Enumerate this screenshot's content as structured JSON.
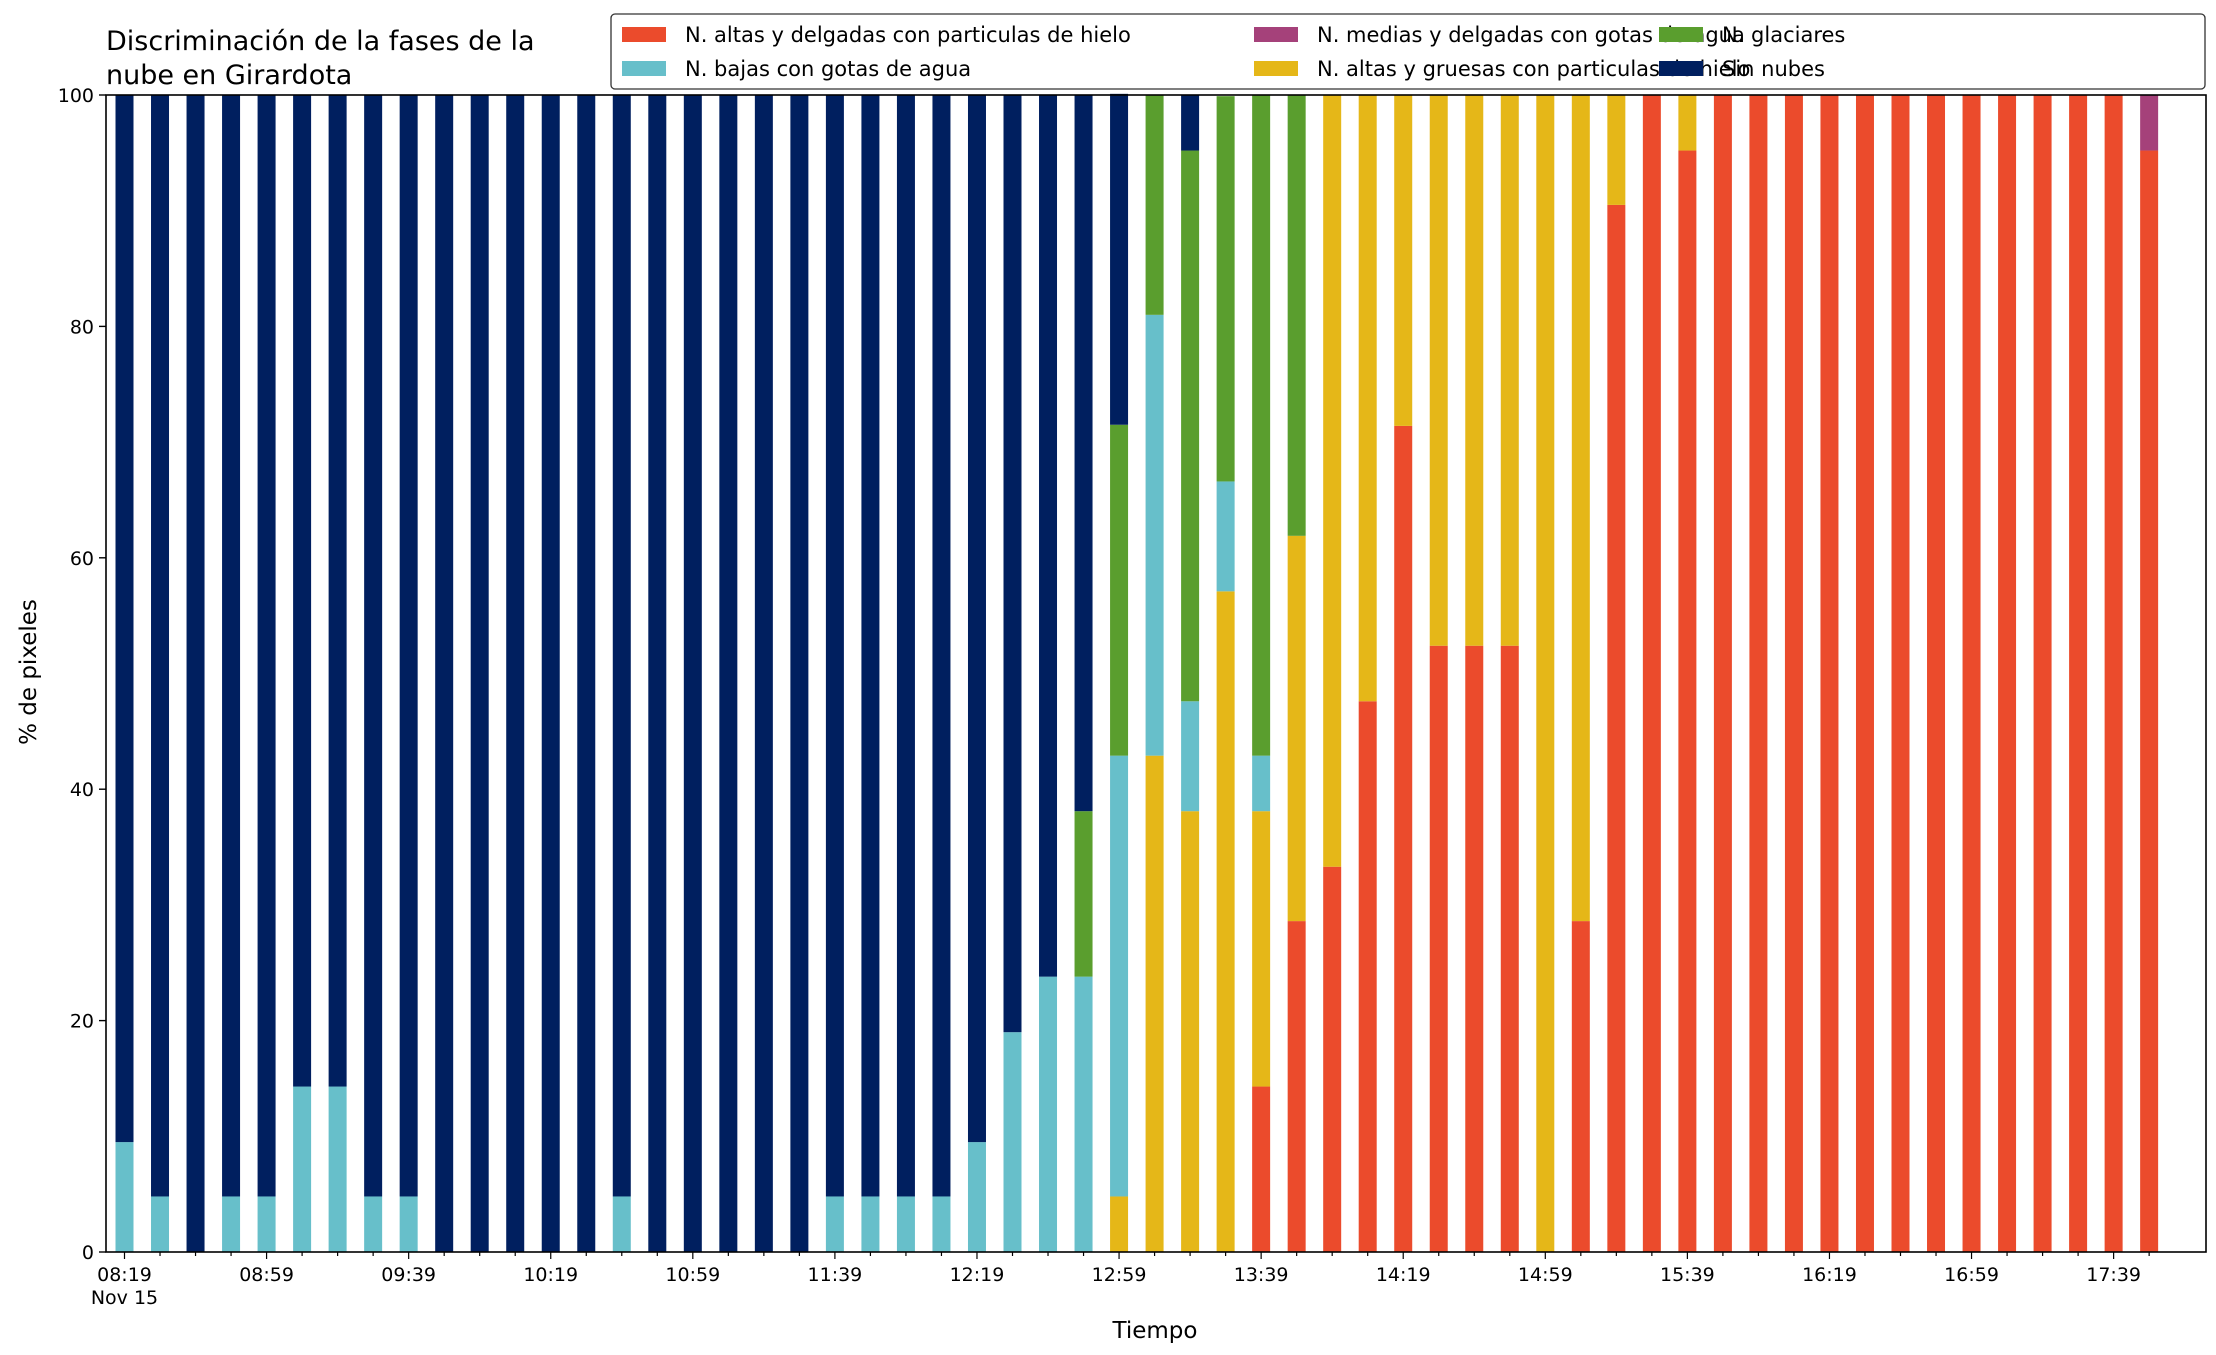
{
  "chart_data": {
    "type": "bar",
    "stacked": true,
    "title": "Discriminación de la fases de la\nnube en Girardota",
    "xlabel": "Tiempo",
    "ylabel": "% de pixeles",
    "ylim": [
      0,
      100
    ],
    "yticks": [
      0,
      20,
      40,
      60,
      80,
      100
    ],
    "grid": false,
    "legend_position": "top-right",
    "xticks": [
      {
        "index": 0,
        "label": "08:19",
        "sublabel": "Nov 15"
      },
      {
        "index": 4,
        "label": "08:59"
      },
      {
        "index": 8,
        "label": "09:39"
      },
      {
        "index": 12,
        "label": "10:19"
      },
      {
        "index": 16,
        "label": "10:59"
      },
      {
        "index": 20,
        "label": "11:39"
      },
      {
        "index": 24,
        "label": "12:19"
      },
      {
        "index": 28,
        "label": "12:59"
      },
      {
        "index": 32,
        "label": "13:39"
      },
      {
        "index": 36,
        "label": "14:19"
      },
      {
        "index": 40,
        "label": "14:59"
      },
      {
        "index": 44,
        "label": "15:39"
      },
      {
        "index": 48,
        "label": "16:19"
      },
      {
        "index": 52,
        "label": "16:59"
      },
      {
        "index": 56,
        "label": "17:39"
      }
    ],
    "categories": [
      "08:19",
      "08:29",
      "08:39",
      "08:49",
      "08:59",
      "09:09",
      "09:19",
      "09:29",
      "09:39",
      "09:49",
      "09:59",
      "10:09",
      "10:19",
      "10:29",
      "10:39",
      "10:49",
      "10:59",
      "11:09",
      "11:19",
      "11:29",
      "11:39",
      "11:49",
      "11:59",
      "12:09",
      "12:19",
      "12:29",
      "12:39",
      "12:49",
      "12:59",
      "13:09",
      "13:19",
      "13:29",
      "13:39",
      "13:49",
      "13:59",
      "14:09",
      "14:19",
      "14:29",
      "14:39",
      "14:49",
      "14:59",
      "15:09",
      "15:19",
      "15:29",
      "15:39",
      "15:49",
      "15:59",
      "16:09",
      "16:19",
      "16:29",
      "16:39",
      "16:49",
      "16:59",
      "17:09",
      "17:19",
      "17:29",
      "17:39",
      "17:49"
    ],
    "series": [
      {
        "name": "N. altas y delgadas con particulas de hielo",
        "color": "#EB4B2C",
        "values": [
          0,
          0,
          0,
          0,
          0,
          0,
          0,
          0,
          0,
          0,
          0,
          0,
          0,
          0,
          0,
          0,
          0,
          0,
          0,
          0,
          0,
          0,
          0,
          0,
          0,
          0,
          0,
          0,
          0,
          0,
          0,
          0,
          14.3,
          28.6,
          33.3,
          47.6,
          71.4,
          52.4,
          52.4,
          52.4,
          0,
          28.6,
          90.5,
          100,
          95.2,
          100,
          100,
          100,
          100,
          100,
          100,
          100,
          100,
          100,
          100,
          100,
          100,
          95.2
        ]
      },
      {
        "name": "N. altas y gruesas con particulas de hielo",
        "color": "#E5B718",
        "values": [
          0,
          0,
          0,
          0,
          0,
          0,
          0,
          0,
          0,
          0,
          0,
          0,
          0,
          0,
          0,
          0,
          0,
          0,
          0,
          0,
          0,
          0,
          0,
          0,
          0,
          0,
          0,
          0,
          4.8,
          42.9,
          38.1,
          57.1,
          23.8,
          33.3,
          66.7,
          52.4,
          28.6,
          47.6,
          47.6,
          47.6,
          100,
          71.4,
          9.5,
          0,
          4.8,
          0,
          0,
          0,
          0,
          0,
          0,
          0,
          0,
          0,
          0,
          0,
          0,
          0
        ]
      },
      {
        "name": "N. bajas con gotas de agua",
        "color": "#67BFCA",
        "values": [
          9.5,
          4.8,
          0,
          4.8,
          4.8,
          14.3,
          14.3,
          4.8,
          4.8,
          0,
          0,
          0,
          0,
          0,
          4.8,
          0,
          0,
          0,
          0,
          0,
          4.8,
          4.8,
          4.8,
          4.8,
          9.5,
          19.0,
          23.8,
          23.8,
          38.1,
          38.1,
          9.5,
          9.5,
          4.8,
          0,
          0,
          0,
          0,
          0,
          0,
          0,
          0,
          0,
          0,
          0,
          0,
          0,
          0,
          0,
          0,
          0,
          0,
          0,
          0,
          0,
          0,
          0,
          0,
          0
        ]
      },
      {
        "name": "N. glaciares",
        "color": "#5A9E2E",
        "values": [
          0,
          0,
          0,
          0,
          0,
          0,
          0,
          0,
          0,
          0,
          0,
          0,
          0,
          0,
          0,
          0,
          0,
          0,
          0,
          0,
          0,
          0,
          0,
          0,
          0,
          0,
          0,
          14.3,
          28.6,
          19.0,
          47.6,
          33.3,
          57.1,
          38.1,
          0,
          0,
          0,
          0,
          0,
          0,
          0,
          0,
          0,
          0,
          0,
          0,
          0,
          0,
          0,
          0,
          0,
          0,
          0,
          0,
          0,
          0,
          0,
          0
        ]
      },
      {
        "name": "N. medias y delgadas con gotas de agua",
        "color": "#A5417A",
        "values": [
          0,
          0,
          0,
          0,
          0,
          0,
          0,
          0,
          0,
          0,
          0,
          0,
          0,
          0,
          0,
          0,
          0,
          0,
          0,
          0,
          0,
          0,
          0,
          0,
          0,
          0,
          0,
          0,
          0,
          0,
          0,
          0,
          0,
          0,
          0,
          0,
          0,
          0,
          0,
          0,
          0,
          0,
          0,
          0,
          0,
          0,
          0,
          0,
          0,
          0,
          0,
          0,
          0,
          0,
          0,
          0,
          0,
          4.8
        ]
      },
      {
        "name": "Sin nubes",
        "color": "#001F5F",
        "values": [
          90.5,
          95.2,
          100,
          95.2,
          95.2,
          85.7,
          85.7,
          95.2,
          95.2,
          100,
          100,
          100,
          100,
          100,
          95.2,
          100,
          100,
          100,
          100,
          100,
          95.2,
          95.2,
          95.2,
          95.2,
          90.5,
          81.0,
          76.2,
          61.9,
          28.6,
          0,
          4.8,
          0,
          0,
          0,
          0,
          0,
          0,
          0,
          0,
          0,
          0,
          0,
          0,
          0,
          0,
          0,
          0,
          0,
          0,
          0,
          0,
          0,
          0,
          0,
          0,
          0,
          0,
          0
        ]
      }
    ]
  },
  "legend_layout": [
    0,
    2,
    4,
    1,
    3,
    5
  ]
}
